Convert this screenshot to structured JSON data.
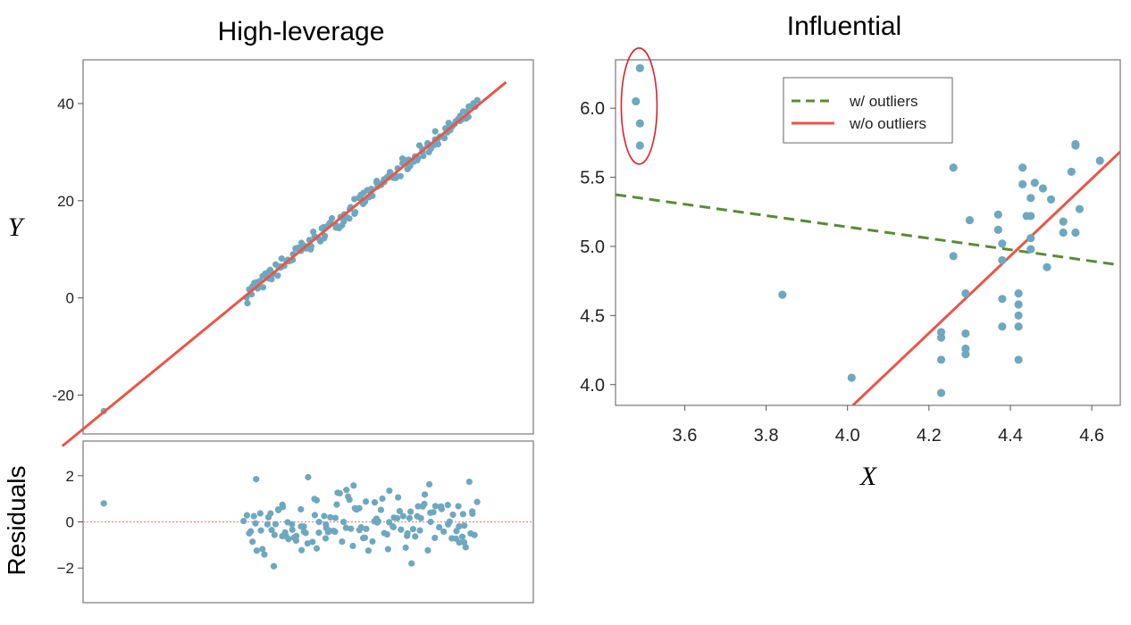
{
  "figure": {
    "left_title": "High-leverage",
    "right_title": "Influential",
    "y_label": "Y",
    "x_label": "X",
    "residuals_label": "Residuals",
    "point_color": "#6FA8BE",
    "line_color": "#E8564A",
    "dashed_color": "#5B8A3A",
    "highlight_color": "#E0202A"
  },
  "chart_data": [
    {
      "type": "scatter",
      "title": "High-leverage",
      "xlabel": "",
      "ylabel": "Y",
      "ylim": [
        -28,
        49
      ],
      "xlim": [
        -27,
        49
      ],
      "yticks": [
        40,
        20,
        0,
        -20
      ],
      "ytick_labels": [
        "40",
        "20",
        "0",
        "-20"
      ],
      "grid": false,
      "fit_line": {
        "slope": 1.0,
        "intercept": 0.0
      },
      "outlier_point": {
        "x": -23.5,
        "y": -23.3
      },
      "cluster": {
        "x_from": 0.5,
        "x_to": 39.5
      }
    },
    {
      "type": "scatter",
      "title": "",
      "xlabel": "",
      "ylabel": "Residuals",
      "ylim": [
        -3.5,
        3.5
      ],
      "xlim": [
        -27,
        49
      ],
      "yticks": [
        2,
        0,
        -2
      ],
      "ytick_labels": [
        "2",
        "0",
        "−2"
      ],
      "reference_line": 0,
      "outlier_residual": {
        "x": -23.5,
        "y": 0.8
      }
    },
    {
      "type": "scatter",
      "title": "Influential",
      "xlabel": "X",
      "ylabel": "",
      "xlim": [
        3.43,
        4.67
      ],
      "ylim": [
        3.85,
        6.35
      ],
      "xticks": [
        3.6,
        3.8,
        4.0,
        4.2,
        4.4,
        4.6
      ],
      "xtick_labels": [
        "3.6",
        "3.8",
        "4.0",
        "4.2",
        "4.4",
        "4.6"
      ],
      "yticks": [
        6.0,
        5.5,
        5.0,
        4.5,
        4.0
      ],
      "ytick_labels": [
        "6.0",
        "5.5",
        "5.0",
        "4.5",
        "4.0"
      ],
      "grid": false,
      "legend_position": "top-right",
      "series": [
        {
          "name": "points",
          "points": [
            [
              3.49,
              6.29
            ],
            [
              3.48,
              6.05
            ],
            [
              3.49,
              5.89
            ],
            [
              3.49,
              5.73
            ],
            [
              3.84,
              4.65
            ],
            [
              4.01,
              4.05
            ],
            [
              4.23,
              4.38
            ],
            [
              4.23,
              4.34
            ],
            [
              4.23,
              4.18
            ],
            [
              4.23,
              3.94
            ],
            [
              4.26,
              5.57
            ],
            [
              4.26,
              4.93
            ],
            [
              4.29,
              4.66
            ],
            [
              4.29,
              4.37
            ],
            [
              4.29,
              4.26
            ],
            [
              4.29,
              4.22
            ],
            [
              4.3,
              5.19
            ],
            [
              4.37,
              5.23
            ],
            [
              4.37,
              5.12
            ],
            [
              4.38,
              5.02
            ],
            [
              4.38,
              4.9
            ],
            [
              4.38,
              4.62
            ],
            [
              4.38,
              4.42
            ],
            [
              4.42,
              4.66
            ],
            [
              4.42,
              4.58
            ],
            [
              4.42,
              4.5
            ],
            [
              4.42,
              4.42
            ],
            [
              4.42,
              4.18
            ],
            [
              4.43,
              5.57
            ],
            [
              4.43,
              5.45
            ],
            [
              4.44,
              5.22
            ],
            [
              4.45,
              5.35
            ],
            [
              4.45,
              5.22
            ],
            [
              4.45,
              5.06
            ],
            [
              4.45,
              4.98
            ],
            [
              4.46,
              5.46
            ],
            [
              4.48,
              5.42
            ],
            [
              4.49,
              4.85
            ],
            [
              4.5,
              5.34
            ],
            [
              4.53,
              5.18
            ],
            [
              4.53,
              5.1
            ],
            [
              4.55,
              5.54
            ],
            [
              4.56,
              5.74
            ],
            [
              4.56,
              5.73
            ],
            [
              4.56,
              5.1
            ],
            [
              4.57,
              5.27
            ],
            [
              4.62,
              5.62
            ]
          ]
        },
        {
          "name": "w/ outliers",
          "line": {
            "x": [
              3.43,
              4.67
            ],
            "y": [
              5.375,
              4.865
            ]
          },
          "style": "dashed"
        },
        {
          "name": "w/o outliers",
          "line": {
            "x": [
              4.013,
              4.67
            ],
            "y": [
              3.85,
              5.685
            ]
          },
          "style": "solid"
        }
      ],
      "highlighted_group": "circled points near x = 3.49"
    }
  ]
}
